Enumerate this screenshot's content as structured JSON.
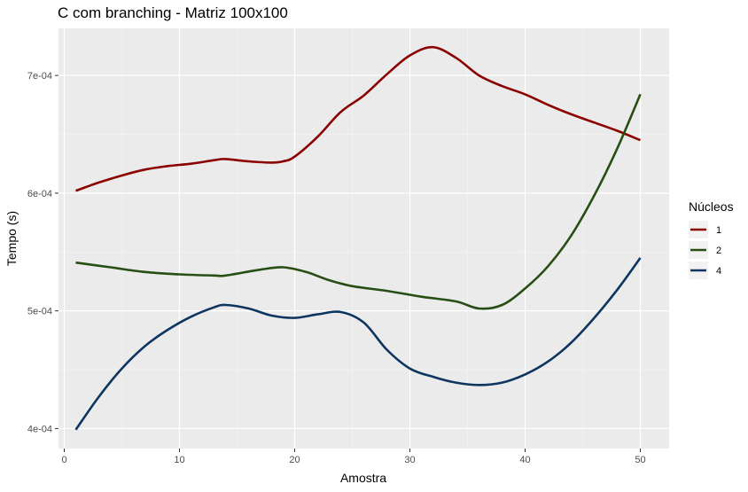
{
  "chart_data": {
    "type": "line",
    "title": "C com branching - Matriz 100x100",
    "xlabel": "Amostra",
    "ylabel": "Tempo (s)",
    "xlim": [
      -0.5,
      52.5
    ],
    "ylim": [
      0.000383,
      0.00074
    ],
    "x_ticks": [
      0,
      10,
      20,
      30,
      40,
      50
    ],
    "x_tick_labels": [
      "0",
      "10",
      "20",
      "30",
      "40",
      "50"
    ],
    "y_ticks": [
      0.0004,
      0.0005,
      0.0006,
      0.0007
    ],
    "y_tick_labels": [
      "4e-04",
      "5e-04",
      "6e-04",
      "7e-04"
    ],
    "grid": true,
    "legend": {
      "title": "Núcleos",
      "position": "right"
    },
    "series": [
      {
        "name": "1",
        "color": "#8b0000",
        "x": [
          1,
          3,
          5,
          7,
          9,
          11,
          13,
          14,
          16,
          18,
          19,
          20,
          22,
          24,
          26,
          28,
          30,
          32,
          34,
          36,
          38,
          40,
          42,
          44,
          46,
          48,
          50
        ],
        "y": [
          0.000602,
          0.000609,
          0.000615,
          0.00062,
          0.000623,
          0.000625,
          0.000628,
          0.000629,
          0.000627,
          0.000626,
          0.000627,
          0.000631,
          0.000648,
          0.000669,
          0.000683,
          0.000701,
          0.000717,
          0.000724,
          0.000715,
          0.0007,
          0.000691,
          0.000684,
          0.000675,
          0.000667,
          0.00066,
          0.000653,
          0.000645
        ]
      },
      {
        "name": "2",
        "color": "#274e13",
        "x": [
          1,
          4,
          7,
          10,
          13,
          14,
          17,
          19,
          21,
          23,
          25,
          28,
          31,
          34,
          36,
          38,
          40,
          42,
          44,
          46,
          48,
          50
        ],
        "y": [
          0.000541,
          0.000537,
          0.000533,
          0.000531,
          0.00053,
          0.00053,
          0.000535,
          0.000537,
          0.000533,
          0.000526,
          0.000521,
          0.000517,
          0.000512,
          0.000508,
          0.000502,
          0.000505,
          0.000519,
          0.000538,
          0.000564,
          0.000598,
          0.000638,
          0.000684
        ]
      },
      {
        "name": "4",
        "color": "#0d3560",
        "x": [
          1,
          3,
          5,
          7,
          9,
          11,
          13,
          14,
          16,
          18,
          20,
          22,
          24,
          26,
          28,
          30,
          32,
          34,
          36,
          38,
          40,
          42,
          44,
          46,
          48,
          50
        ],
        "y": [
          0.000399,
          0.000427,
          0.000451,
          0.00047,
          0.000484,
          0.000495,
          0.000503,
          0.000505,
          0.000502,
          0.000496,
          0.000494,
          0.000497,
          0.000499,
          0.00049,
          0.000467,
          0.000451,
          0.000444,
          0.000439,
          0.000437,
          0.000439,
          0.000446,
          0.000457,
          0.000473,
          0.000494,
          0.000518,
          0.000545
        ]
      }
    ]
  }
}
